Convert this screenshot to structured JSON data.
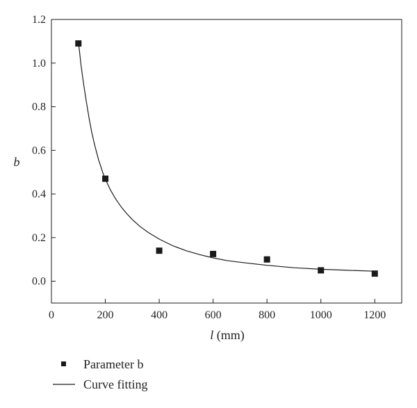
{
  "chart_data": {
    "type": "scatter",
    "xlabel_symbol": "l",
    "xlabel_unit": " (mm)",
    "ylabel": "b",
    "xlim": [
      0,
      1300
    ],
    "ylim": [
      -0.1,
      1.2
    ],
    "xticks": [
      0,
      200,
      400,
      600,
      800,
      1000,
      1200
    ],
    "xtick_labels": [
      "0",
      "200",
      "400",
      "600",
      "800",
      "1000",
      "1200"
    ],
    "yticks": [
      0.0,
      0.2,
      0.4,
      0.6,
      0.8,
      1.0,
      1.2
    ],
    "ytick_labels": [
      "0.0",
      "0.2",
      "0.4",
      "0.6",
      "0.8",
      "1.0",
      "1.2"
    ],
    "grid": false,
    "legend_position": "bottom-left",
    "series": [
      {
        "name": "Parameter b",
        "kind": "scatter",
        "marker": "square",
        "color": "#1a1a1a",
        "x": [
          100,
          200,
          400,
          600,
          800,
          1000,
          1200
        ],
        "y": [
          1.09,
          0.47,
          0.14,
          0.125,
          0.1,
          0.05,
          0.035
        ]
      },
      {
        "name": "Curve fitting",
        "kind": "line",
        "color": "#1a1a1a",
        "x": [
          100,
          110,
          120,
          130,
          140,
          150,
          160,
          175,
          190,
          200,
          220,
          240,
          260,
          280,
          300,
          330,
          360,
          400,
          450,
          500,
          550,
          600,
          650,
          700,
          800,
          900,
          1000,
          1100,
          1200
        ],
        "y": [
          1.1,
          0.99,
          0.9,
          0.82,
          0.745,
          0.68,
          0.627,
          0.557,
          0.5,
          0.468,
          0.416,
          0.374,
          0.339,
          0.309,
          0.283,
          0.25,
          0.223,
          0.193,
          0.163,
          0.14,
          0.122,
          0.107,
          0.095,
          0.087,
          0.073,
          0.062,
          0.055,
          0.05,
          0.046
        ]
      }
    ]
  }
}
